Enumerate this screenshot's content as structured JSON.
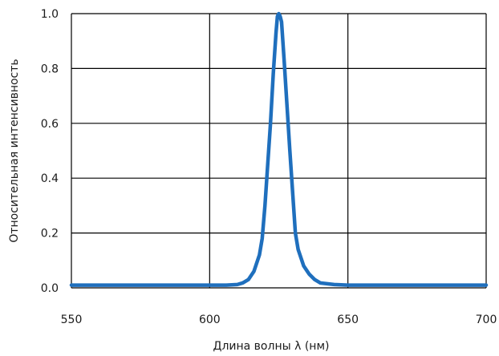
{
  "chart_data": {
    "type": "line",
    "title": "",
    "xlabel": "Длина волны λ (нм)",
    "ylabel": "Относительная интенсивность",
    "xlim": [
      550,
      700
    ],
    "ylim": [
      0,
      1.0
    ],
    "x_ticks": [
      "550",
      "600",
      "650",
      "700"
    ],
    "y_ticks": [
      "0.0",
      "0.2",
      "0.4",
      "0.6",
      "0.8",
      "1.0"
    ],
    "grid": true,
    "legend": "none",
    "series": [
      {
        "color": "#1f6fbd",
        "x": [
          550,
          580,
          600,
          606,
          610,
          612,
          614,
          616,
          618,
          619,
          620,
          621,
          622,
          623,
          624,
          624.5,
          625,
          625.5,
          626,
          627,
          628,
          629,
          630,
          631,
          632,
          634,
          636,
          638,
          640,
          645,
          650,
          700
        ],
        "y": [
          0.01,
          0.01,
          0.01,
          0.01,
          0.012,
          0.018,
          0.03,
          0.06,
          0.12,
          0.18,
          0.3,
          0.45,
          0.6,
          0.78,
          0.93,
          0.99,
          1.0,
          0.99,
          0.97,
          0.82,
          0.66,
          0.5,
          0.35,
          0.2,
          0.14,
          0.08,
          0.05,
          0.03,
          0.018,
          0.012,
          0.01,
          0.01
        ]
      }
    ]
  }
}
